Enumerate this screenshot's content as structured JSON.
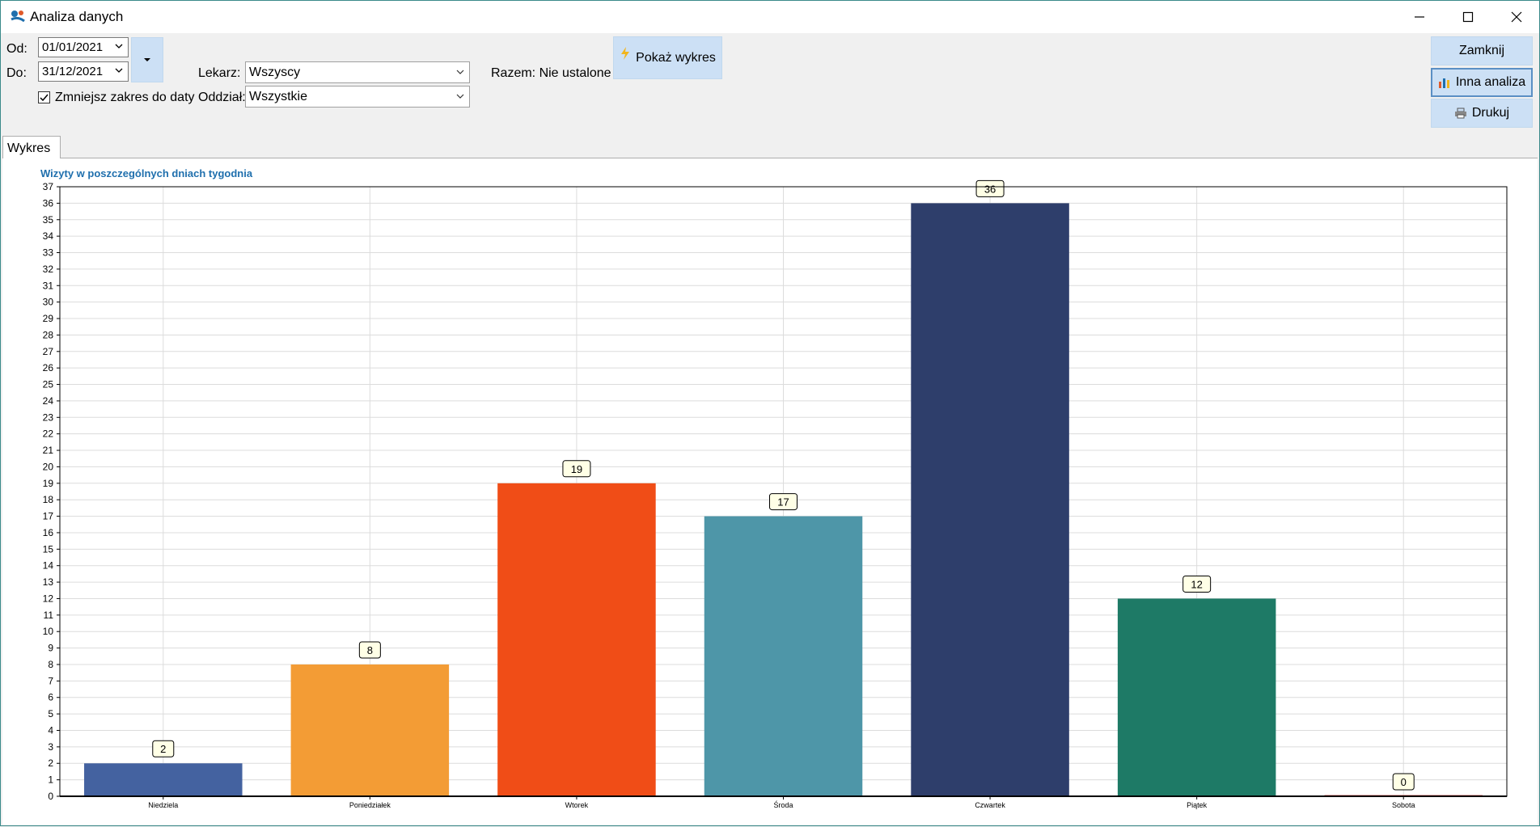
{
  "window": {
    "title": "Analiza danych",
    "minimize": "minimize",
    "maximize": "maximize",
    "close": "close"
  },
  "filters": {
    "from_label": "Od:",
    "from_value": "01/01/2021",
    "to_label": "Do:",
    "to_value": "31/12/2021",
    "narrow_label": "Zmniejsz zakres do daty",
    "narrow_checked": true,
    "doctor_label": "Lekarz:",
    "doctor_value": "Wszyscy",
    "department_label": "Oddział:",
    "department_value": "Wszystkie",
    "total_text": "Razem: Nie ustalone",
    "show_chart_label": "Pokaż wykres"
  },
  "actions": {
    "close_label": "Zamknij",
    "other_analysis_label": "Inna analiza",
    "print_label": "Drukuj"
  },
  "tabs": [
    "Wykres"
  ],
  "chart_data": {
    "type": "bar",
    "title": "Wizyty w poszczególnych dniach tygodnia",
    "categories": [
      "Niedziela",
      "Poniedziałek",
      "Wtorek",
      "Środa",
      "Czwartek",
      "Piątek",
      "Sobota"
    ],
    "values": [
      2,
      8,
      19,
      17,
      36,
      12,
      0
    ],
    "colors": [
      "#4462a0",
      "#f39c35",
      "#f04d17",
      "#4e96a8",
      "#2e3e6b",
      "#1e7a66",
      "#d9534f"
    ],
    "xlabel": "",
    "ylabel": "",
    "ylim": [
      0,
      37
    ],
    "ytick_step": 1,
    "grid": true,
    "data_labels": true
  }
}
